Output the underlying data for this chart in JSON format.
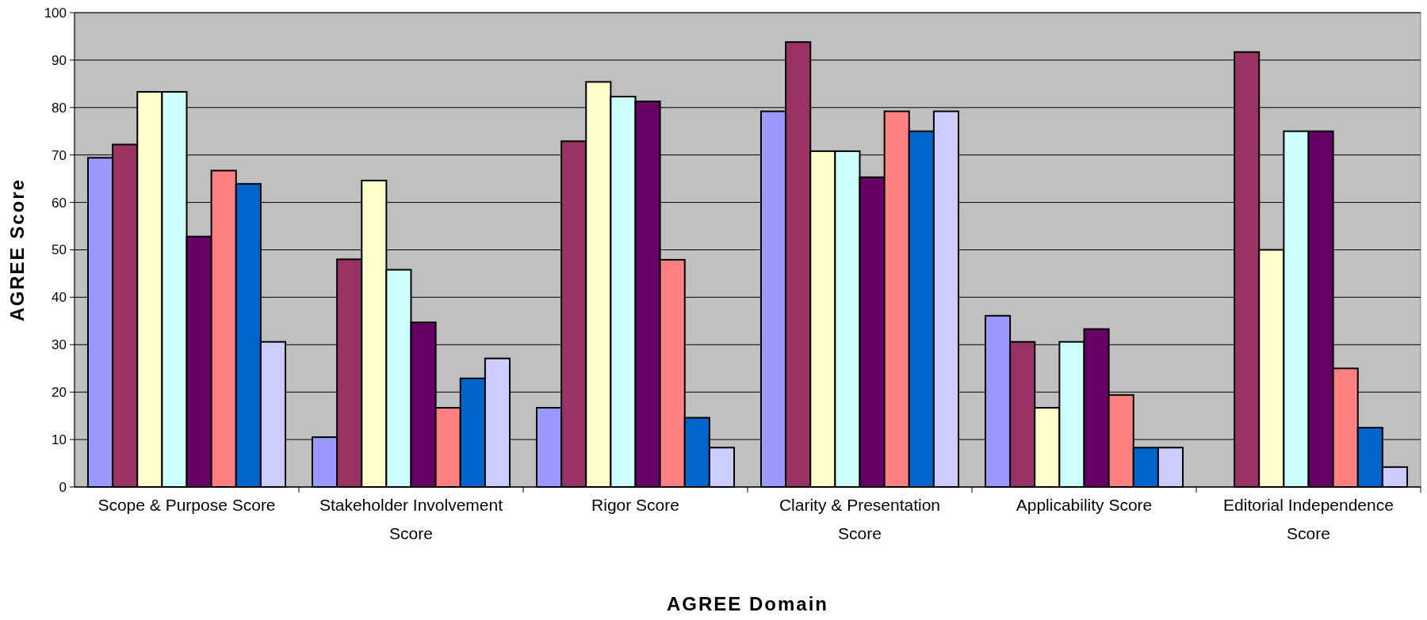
{
  "chart_data": {
    "type": "bar",
    "xlabel": "AGREE Domain",
    "ylabel": "AGREE Score",
    "categories": [
      "Scope & Purpose Score",
      "Stakeholder Involvement Score",
      "Rigor Score",
      "Clarity & Presentation Score",
      "Applicability Score",
      "Editorial Independence Score"
    ],
    "series": [
      {
        "color": "#9999ff",
        "values": [
          69.4,
          10.5,
          16.7,
          79.2,
          36.1,
          null
        ]
      },
      {
        "color": "#993366",
        "values": [
          72.2,
          48,
          72.9,
          93.8,
          30.6,
          91.7
        ]
      },
      {
        "color": "#ffffcc",
        "values": [
          83.3,
          64.6,
          85.4,
          70.8,
          16.7,
          50
        ]
      },
      {
        "color": "#ccffff",
        "values": [
          83.3,
          45.8,
          82.3,
          70.8,
          30.6,
          75
        ]
      },
      {
        "color": "#660066",
        "values": [
          52.8,
          34.7,
          81.3,
          65.3,
          33.3,
          75
        ]
      },
      {
        "color": "#ff8080",
        "values": [
          66.7,
          16.7,
          47.9,
          79.2,
          19.4,
          25
        ]
      },
      {
        "color": "#0066cc",
        "values": [
          63.9,
          22.9,
          14.6,
          75,
          8.3,
          12.5
        ]
      },
      {
        "color": "#ccccff",
        "values": [
          30.6,
          27.1,
          8.3,
          79.2,
          8.3,
          4.2
        ]
      }
    ],
    "ylim": [
      0,
      100
    ],
    "yticks": [
      0,
      10,
      20,
      30,
      40,
      50,
      60,
      70,
      80,
      90,
      100
    ],
    "grid": "y"
  }
}
